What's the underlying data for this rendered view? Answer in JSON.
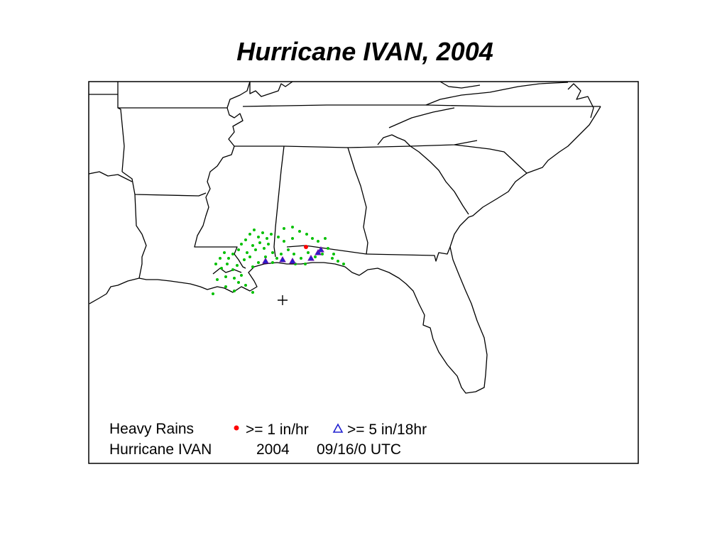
{
  "title": "Hurricane IVAN, 2004",
  "legend": {
    "heading": "Heavy Rains",
    "red_label": ">= 1 in/hr",
    "blue_label": ">= 5 in/18hr",
    "caption_name": "Hurricane  IVAN",
    "caption_year": "2004",
    "caption_time": "09/16/0 UTC"
  },
  "colors": {
    "one_inch_hr": "#ff0000",
    "five_inch_18hr": "#2020d0",
    "station": "#00c000",
    "outline": "#000000"
  },
  "markers": {
    "center_symbol": "plus-icon",
    "red_symbol": "filled-circle",
    "blue_symbol": "open-triangle"
  }
}
